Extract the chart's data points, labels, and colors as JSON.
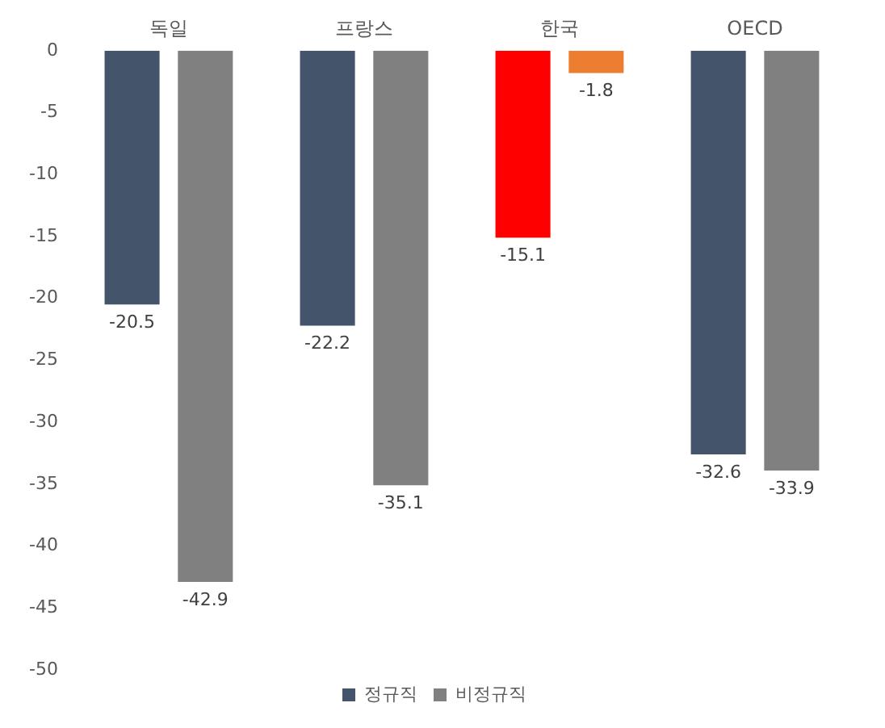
{
  "chart_data": {
    "type": "bar",
    "categories": [
      "독일",
      "프랑스",
      "한국",
      "OECD"
    ],
    "series": [
      {
        "name": "정규직",
        "color": "#44546a",
        "colors": [
          "#44546a",
          "#44546a",
          "#ff0000",
          "#44546a"
        ],
        "values": [
          -20.5,
          -22.2,
          -15.1,
          -32.6
        ]
      },
      {
        "name": "비정규직",
        "color": "#808080",
        "colors": [
          "#808080",
          "#808080",
          "#ed7d31",
          "#808080"
        ],
        "values": [
          -42.9,
          -35.1,
          -1.8,
          -33.9
        ]
      }
    ],
    "ylim": [
      -50,
      0
    ],
    "yticks": [
      0,
      -5,
      -10,
      -15,
      -20,
      -25,
      -30,
      -35,
      -40,
      -45,
      -50
    ],
    "grid": false,
    "legend": "bottom",
    "data_labels": true
  }
}
